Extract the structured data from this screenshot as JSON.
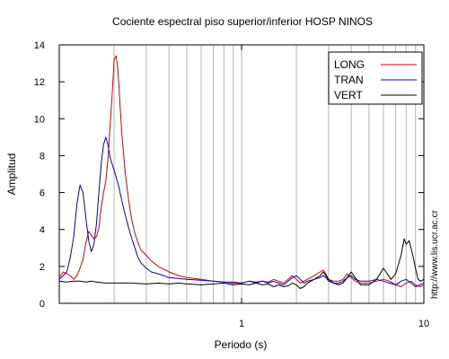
{
  "chart_data": {
    "type": "line",
    "title": "Cociente espectral piso superior/inferior  HOSP NINOS",
    "xlabel": "Periodo (s)",
    "ylabel": "Amplitud",
    "x_scale": "log",
    "xlim": [
      0.1,
      10
    ],
    "ylim": [
      0,
      14
    ],
    "x_ticks": [
      {
        "value": 1,
        "label": "1"
      },
      {
        "value": 10,
        "label": "10"
      }
    ],
    "y_ticks": [
      {
        "value": 0,
        "label": "0"
      },
      {
        "value": 2,
        "label": "2"
      },
      {
        "value": 4,
        "label": "4"
      },
      {
        "value": 6,
        "label": "6"
      },
      {
        "value": 8,
        "label": "8"
      },
      {
        "value": 10,
        "label": "10"
      },
      {
        "value": 12,
        "label": "12"
      },
      {
        "value": 14,
        "label": "14"
      }
    ],
    "grid": "vertical-log",
    "legend_position": "top-right",
    "series": [
      {
        "name": "LONG",
        "color": "#dd0000",
        "points": [
          [
            0.1,
            1.4
          ],
          [
            0.105,
            1.7
          ],
          [
            0.11,
            1.6
          ],
          [
            0.115,
            1.5
          ],
          [
            0.12,
            1.3
          ],
          [
            0.125,
            1.5
          ],
          [
            0.13,
            1.9
          ],
          [
            0.135,
            2.4
          ],
          [
            0.14,
            3.3
          ],
          [
            0.145,
            3.9
          ],
          [
            0.15,
            3.7
          ],
          [
            0.155,
            3.5
          ],
          [
            0.16,
            3.6
          ],
          [
            0.165,
            4.1
          ],
          [
            0.17,
            5.2
          ],
          [
            0.175,
            6.0
          ],
          [
            0.18,
            6.6
          ],
          [
            0.185,
            7.8
          ],
          [
            0.19,
            9.6
          ],
          [
            0.195,
            11.3
          ],
          [
            0.2,
            13.2
          ],
          [
            0.205,
            13.4
          ],
          [
            0.21,
            12.6
          ],
          [
            0.215,
            10.9
          ],
          [
            0.22,
            9.3
          ],
          [
            0.23,
            7.1
          ],
          [
            0.24,
            5.6
          ],
          [
            0.25,
            4.5
          ],
          [
            0.26,
            3.8
          ],
          [
            0.27,
            3.3
          ],
          [
            0.28,
            2.9
          ],
          [
            0.3,
            2.6
          ],
          [
            0.32,
            2.3
          ],
          [
            0.35,
            2.0
          ],
          [
            0.4,
            1.7
          ],
          [
            0.45,
            1.5
          ],
          [
            0.5,
            1.4
          ],
          [
            0.6,
            1.3
          ],
          [
            0.7,
            1.2
          ],
          [
            0.8,
            1.15
          ],
          [
            0.9,
            1.15
          ],
          [
            1.0,
            1.1
          ],
          [
            1.1,
            1.2
          ],
          [
            1.2,
            1.15
          ],
          [
            1.3,
            1.2
          ],
          [
            1.4,
            1.15
          ],
          [
            1.5,
            1.3
          ],
          [
            1.6,
            1.2
          ],
          [
            1.7,
            1.1
          ],
          [
            1.8,
            1.3
          ],
          [
            1.9,
            1.5
          ],
          [
            2.0,
            1.3
          ],
          [
            2.1,
            1.1
          ],
          [
            2.2,
            1.2
          ],
          [
            2.3,
            1.3
          ],
          [
            2.5,
            1.5
          ],
          [
            2.7,
            1.7
          ],
          [
            2.8,
            1.8
          ],
          [
            2.9,
            1.6
          ],
          [
            3.0,
            1.3
          ],
          [
            3.2,
            1.2
          ],
          [
            3.4,
            1.2
          ],
          [
            3.6,
            1.3
          ],
          [
            3.8,
            1.6
          ],
          [
            4.0,
            1.4
          ],
          [
            4.2,
            1.2
          ],
          [
            4.5,
            1.1
          ],
          [
            5.0,
            1.1
          ],
          [
            5.5,
            1.2
          ],
          [
            6.0,
            1.3
          ],
          [
            6.5,
            1.2
          ],
          [
            7.0,
            1.0
          ],
          [
            7.5,
            0.9
          ],
          [
            8.0,
            1.1
          ],
          [
            8.5,
            1.2
          ],
          [
            9.0,
            1.0
          ],
          [
            9.5,
            0.9
          ],
          [
            10.0,
            1.0
          ]
        ]
      },
      {
        "name": "TRAN",
        "color": "#0000cc",
        "points": [
          [
            0.1,
            1.3
          ],
          [
            0.105,
            1.5
          ],
          [
            0.11,
            1.7
          ],
          [
            0.115,
            2.5
          ],
          [
            0.12,
            3.6
          ],
          [
            0.125,
            5.4
          ],
          [
            0.13,
            6.4
          ],
          [
            0.135,
            6.0
          ],
          [
            0.14,
            4.6
          ],
          [
            0.145,
            3.4
          ],
          [
            0.15,
            2.8
          ],
          [
            0.155,
            3.2
          ],
          [
            0.16,
            4.3
          ],
          [
            0.165,
            6.0
          ],
          [
            0.17,
            7.6
          ],
          [
            0.175,
            8.6
          ],
          [
            0.18,
            9.0
          ],
          [
            0.185,
            8.6
          ],
          [
            0.19,
            7.9
          ],
          [
            0.2,
            7.2
          ],
          [
            0.21,
            6.5
          ],
          [
            0.22,
            5.6
          ],
          [
            0.23,
            4.8
          ],
          [
            0.24,
            4.1
          ],
          [
            0.25,
            3.5
          ],
          [
            0.26,
            3.0
          ],
          [
            0.27,
            2.5
          ],
          [
            0.28,
            2.2
          ],
          [
            0.3,
            1.9
          ],
          [
            0.32,
            1.7
          ],
          [
            0.35,
            1.6
          ],
          [
            0.4,
            1.4
          ],
          [
            0.45,
            1.35
          ],
          [
            0.5,
            1.3
          ],
          [
            0.6,
            1.25
          ],
          [
            0.7,
            1.2
          ],
          [
            0.8,
            1.15
          ],
          [
            0.9,
            1.1
          ],
          [
            1.0,
            1.1
          ],
          [
            1.1,
            1.2
          ],
          [
            1.2,
            1.1
          ],
          [
            1.3,
            1.2
          ],
          [
            1.4,
            1.1
          ],
          [
            1.5,
            1.2
          ],
          [
            1.6,
            1.1
          ],
          [
            1.7,
            1.0
          ],
          [
            1.8,
            1.2
          ],
          [
            1.9,
            1.4
          ],
          [
            2.0,
            1.5
          ],
          [
            2.1,
            1.3
          ],
          [
            2.2,
            1.1
          ],
          [
            2.3,
            1.2
          ],
          [
            2.5,
            1.3
          ],
          [
            2.7,
            1.4
          ],
          [
            2.8,
            1.5
          ],
          [
            2.9,
            1.4
          ],
          [
            3.0,
            1.2
          ],
          [
            3.2,
            1.1
          ],
          [
            3.4,
            1.1
          ],
          [
            3.6,
            1.2
          ],
          [
            3.8,
            1.4
          ],
          [
            4.0,
            1.5
          ],
          [
            4.2,
            1.3
          ],
          [
            4.5,
            1.2
          ],
          [
            5.0,
            1.2
          ],
          [
            5.5,
            1.3
          ],
          [
            6.0,
            1.2
          ],
          [
            6.5,
            1.1
          ],
          [
            7.0,
            1.0
          ],
          [
            7.5,
            1.2
          ],
          [
            8.0,
            1.3
          ],
          [
            8.5,
            1.1
          ],
          [
            9.0,
            0.9
          ],
          [
            9.5,
            1.0
          ],
          [
            10.0,
            1.1
          ]
        ]
      },
      {
        "name": "VERT",
        "color": "#000000",
        "points": [
          [
            0.1,
            1.2
          ],
          [
            0.11,
            1.15
          ],
          [
            0.12,
            1.2
          ],
          [
            0.13,
            1.2
          ],
          [
            0.14,
            1.15
          ],
          [
            0.15,
            1.2
          ],
          [
            0.16,
            1.15
          ],
          [
            0.18,
            1.1
          ],
          [
            0.2,
            1.1
          ],
          [
            0.25,
            1.1
          ],
          [
            0.3,
            1.05
          ],
          [
            0.35,
            1.1
          ],
          [
            0.4,
            1.05
          ],
          [
            0.45,
            1.1
          ],
          [
            0.5,
            1.05
          ],
          [
            0.6,
            1.0
          ],
          [
            0.7,
            1.05
          ],
          [
            0.8,
            1.1
          ],
          [
            0.9,
            1.0
          ],
          [
            1.0,
            1.05
          ],
          [
            1.1,
            1.0
          ],
          [
            1.2,
            1.1
          ],
          [
            1.3,
            1.0
          ],
          [
            1.4,
            1.05
          ],
          [
            1.5,
            0.9
          ],
          [
            1.6,
            1.0
          ],
          [
            1.7,
            0.9
          ],
          [
            1.8,
            0.95
          ],
          [
            1.9,
            1.1
          ],
          [
            2.0,
            1.0
          ],
          [
            2.1,
            0.8
          ],
          [
            2.2,
            0.9
          ],
          [
            2.3,
            1.1
          ],
          [
            2.5,
            1.3
          ],
          [
            2.7,
            1.5
          ],
          [
            2.8,
            1.7
          ],
          [
            2.9,
            1.5
          ],
          [
            3.0,
            1.3
          ],
          [
            3.2,
            1.1
          ],
          [
            3.4,
            1.0
          ],
          [
            3.6,
            1.1
          ],
          [
            3.8,
            1.4
          ],
          [
            4.0,
            1.7
          ],
          [
            4.2,
            1.4
          ],
          [
            4.5,
            1.0
          ],
          [
            5.0,
            1.0
          ],
          [
            5.5,
            1.3
          ],
          [
            6.0,
            1.9
          ],
          [
            6.3,
            1.6
          ],
          [
            6.6,
            1.3
          ],
          [
            7.0,
            1.6
          ],
          [
            7.5,
            2.6
          ],
          [
            7.8,
            3.5
          ],
          [
            8.0,
            3.2
          ],
          [
            8.3,
            3.4
          ],
          [
            8.7,
            2.6
          ],
          [
            9.0,
            1.9
          ],
          [
            9.3,
            1.3
          ],
          [
            9.6,
            1.2
          ],
          [
            10.0,
            1.3
          ]
        ]
      }
    ],
    "annotation": "http://www.lis.ucr.ac.cr"
  }
}
